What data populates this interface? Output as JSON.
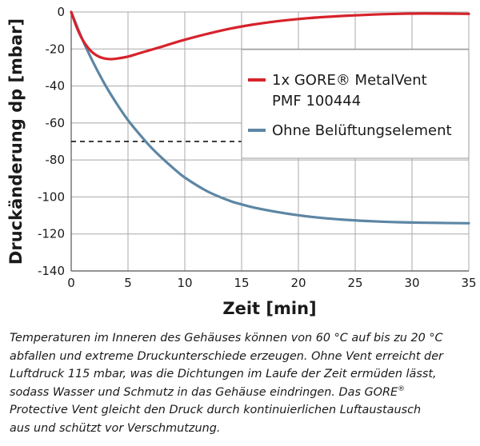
{
  "chart_data": {
    "type": "line",
    "xlabel": "Zeit [min]",
    "ylabel": "Druckänderung dp [mbar]",
    "xlim": [
      0,
      35
    ],
    "ylim": [
      -140,
      0
    ],
    "x_ticks": [
      "0",
      "5",
      "10",
      "15",
      "20",
      "25",
      "30",
      "35"
    ],
    "y_ticks": [
      "0",
      "-20",
      "-40",
      "-60",
      "-80",
      "-100",
      "-120",
      "-140"
    ],
    "grid": true,
    "legend_position": "right-middle",
    "series": [
      {
        "name": "1x GORE® MetalVent PMF 100444",
        "legend_line1": "1x GORE® MetalVent",
        "legend_line2": "PMF 100444",
        "color": "#d7222b",
        "x": [
          0,
          0.5,
          1,
          1.5,
          2,
          2.5,
          3,
          3.5,
          4,
          5,
          6,
          7,
          8,
          9,
          10,
          12,
          14,
          16,
          18,
          20,
          22,
          25,
          28,
          31,
          35
        ],
        "y": [
          0,
          -8.5,
          -15,
          -19.5,
          -22.5,
          -24.3,
          -25.2,
          -25.5,
          -25.2,
          -24.1,
          -22.3,
          -20.5,
          -18.7,
          -16.8,
          -15,
          -11.8,
          -9,
          -6.8,
          -5.1,
          -3.8,
          -2.8,
          -1.8,
          -1.1,
          -0.8,
          -1
        ]
      },
      {
        "name": "Ohne Belüftungselement",
        "color": "#5d86a4",
        "x": [
          0,
          1,
          2,
          3,
          4,
          5,
          6,
          7,
          8,
          9,
          10,
          12,
          14,
          15,
          16,
          18,
          20,
          22,
          24,
          26,
          28,
          30,
          32,
          35
        ],
        "y": [
          0,
          -15,
          -28,
          -39.5,
          -49.5,
          -58.5,
          -66,
          -73,
          -79,
          -84.5,
          -89.5,
          -97,
          -102.2,
          -104,
          -105.6,
          -108,
          -109.9,
          -111.3,
          -112.3,
          -113,
          -113.5,
          -113.8,
          -114,
          -114.2
        ]
      }
    ],
    "reference_line": {
      "y": -70,
      "x_start": 0,
      "x_end": 15,
      "style": "dashed",
      "color": "#000000"
    }
  },
  "caption": {
    "lines": [
      "Temperaturen im Inneren des Gehäuses können von 60 °C auf bis zu 20 °C",
      "abfallen und extreme Druckunterschiede erzeugen. Ohne Vent erreicht der",
      "Luftdruck 115 mbar, was die Dichtungen im Laufe der Zeit ermüden lässt,",
      "sodass Wasser und Schmutz in das Gehäuse eindringen. Das GORE",
      "Protective Vent gleicht den Druck durch kontinuierlichen Luftaustausch",
      "aus und schützt vor Verschmutzung."
    ],
    "registered_mark": "®"
  }
}
